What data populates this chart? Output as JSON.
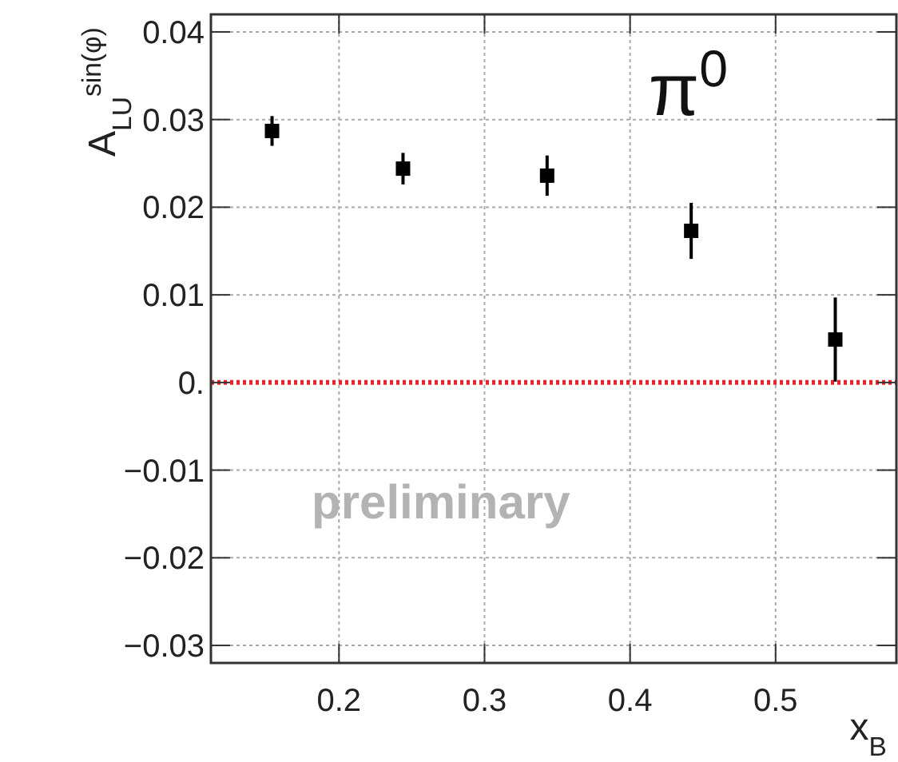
{
  "chart_data": {
    "type": "scatter",
    "xlabel": "x$_{B}$",
    "ylabel": "A$_{LU}$$^{sin(φ)}$",
    "x": [
      0.154,
      0.244,
      0.343,
      0.442,
      0.541
    ],
    "values": [
      0.0287,
      0.0244,
      0.0236,
      0.0173,
      0.0049
    ],
    "errors": [
      0.0017,
      0.0018,
      0.0023,
      0.0032,
      0.0048
    ],
    "color": "#000000",
    "marker": "square",
    "grid": true,
    "xlim": [
      0.112,
      0.583
    ],
    "xticks": [
      0.2,
      0.3,
      0.4,
      0.5
    ],
    "ylim": [
      -0.032,
      0.042
    ],
    "yticks": [
      {
        "value": -0.03,
        "label": "−0.03"
      },
      {
        "value": -0.02,
        "label": "−0.02"
      },
      {
        "value": -0.01,
        "label": "−0.01"
      },
      {
        "value": 0,
        "label": "0."
      },
      0.01,
      0.02,
      0.03,
      0.04
    ],
    "ref_lines": [
      {
        "axis": "y",
        "value": 0,
        "color": "#e8262a",
        "line_style": "dotted"
      }
    ],
    "annotations": [
      "π$^{0}$",
      "preliminary"
    ]
  }
}
